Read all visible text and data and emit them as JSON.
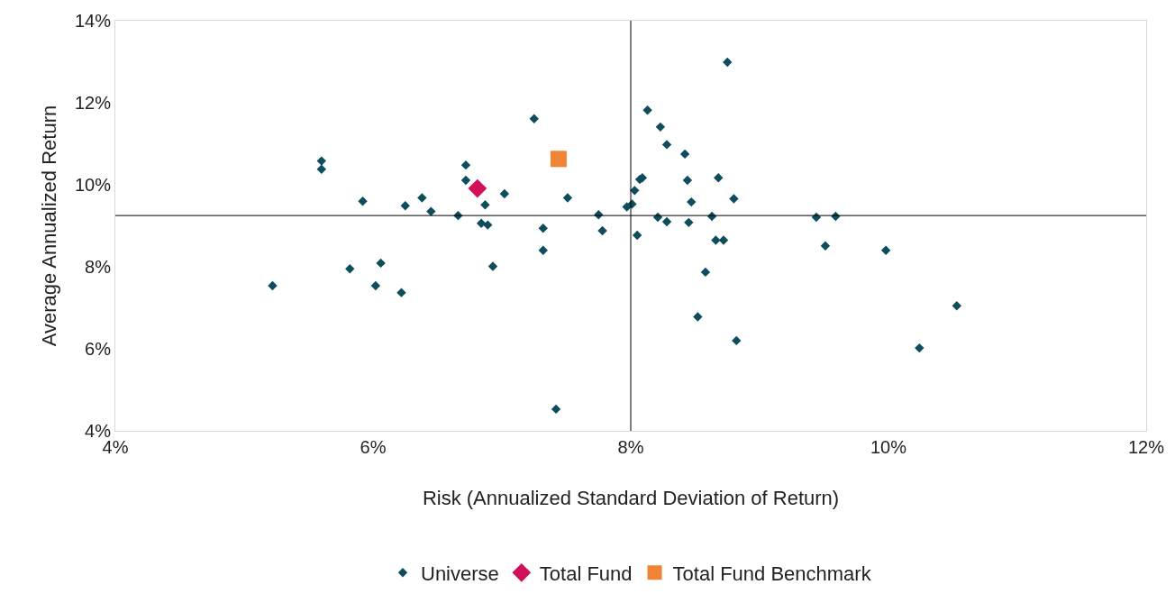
{
  "chart_data": {
    "type": "scatter",
    "xlabel": "Risk (Annualized Standard Deviation of Return)",
    "ylabel": "Average Annualized Return",
    "xlim": [
      4,
      12
    ],
    "xticks": [
      {
        "value": 4,
        "label": "4%"
      },
      {
        "value": 6,
        "label": "6%"
      },
      {
        "value": 8,
        "label": "8%"
      },
      {
        "value": 10,
        "label": "10%"
      },
      {
        "value": 12,
        "label": "12%"
      }
    ],
    "ylim": [
      4,
      14
    ],
    "yticks": [
      {
        "value": 4,
        "label": "4%"
      },
      {
        "value": 6,
        "label": "6%"
      },
      {
        "value": 8,
        "label": "8%"
      },
      {
        "value": 10,
        "label": "10%"
      },
      {
        "value": 12,
        "label": "12%"
      },
      {
        "value": 14,
        "label": "14%"
      }
    ],
    "grid": false,
    "legend": "bottom",
    "ref_lines": [
      {
        "axis": "x",
        "value": 8,
        "color": "#000000"
      },
      {
        "axis": "y",
        "value": 9.25,
        "color": "#000000"
      }
    ],
    "series": [
      {
        "name": "Universe",
        "color": "#0e4d5c",
        "marker": "diamond",
        "x": [
          5.22,
          5.6,
          5.6,
          5.82,
          5.92,
          6.02,
          6.06,
          6.22,
          6.25,
          6.38,
          6.45,
          6.66,
          6.72,
          6.72,
          6.84,
          6.87,
          6.89,
          6.93,
          7.02,
          7.25,
          7.32,
          7.32,
          7.42,
          7.51,
          7.75,
          7.78,
          7.97,
          8.01,
          8.03,
          8.05,
          8.07,
          8.09,
          8.13,
          8.21,
          8.23,
          8.28,
          8.28,
          8.42,
          8.44,
          8.45,
          8.47,
          8.52,
          8.58,
          8.63,
          8.66,
          8.68,
          8.72,
          8.75,
          8.8,
          8.82,
          9.44,
          9.51,
          9.59,
          9.98,
          10.24,
          10.53
        ],
        "values": [
          7.54,
          10.58,
          10.38,
          7.95,
          9.6,
          7.54,
          8.09,
          7.37,
          9.49,
          9.68,
          9.35,
          9.25,
          10.48,
          10.11,
          9.06,
          9.51,
          9.02,
          8.01,
          9.78,
          11.61,
          8.94,
          8.4,
          4.53,
          9.68,
          9.27,
          8.88,
          9.46,
          9.53,
          9.86,
          8.77,
          10.13,
          10.17,
          11.82,
          9.21,
          11.41,
          10.98,
          9.1,
          10.75,
          10.11,
          9.08,
          9.58,
          6.78,
          7.87,
          9.23,
          8.65,
          10.17,
          8.65,
          12.99,
          9.66,
          6.2,
          9.21,
          8.51,
          9.23,
          8.4,
          6.02,
          7.05
        ]
      },
      {
        "name": "Total Fund",
        "color": "#d1105a",
        "marker": "diamond",
        "x": [
          6.81
        ],
        "values": [
          9.91
        ]
      },
      {
        "name": "Total Fund Benchmark",
        "color": "#ee8434",
        "marker": "square",
        "x": [
          7.44
        ],
        "values": [
          10.63
        ]
      }
    ]
  }
}
